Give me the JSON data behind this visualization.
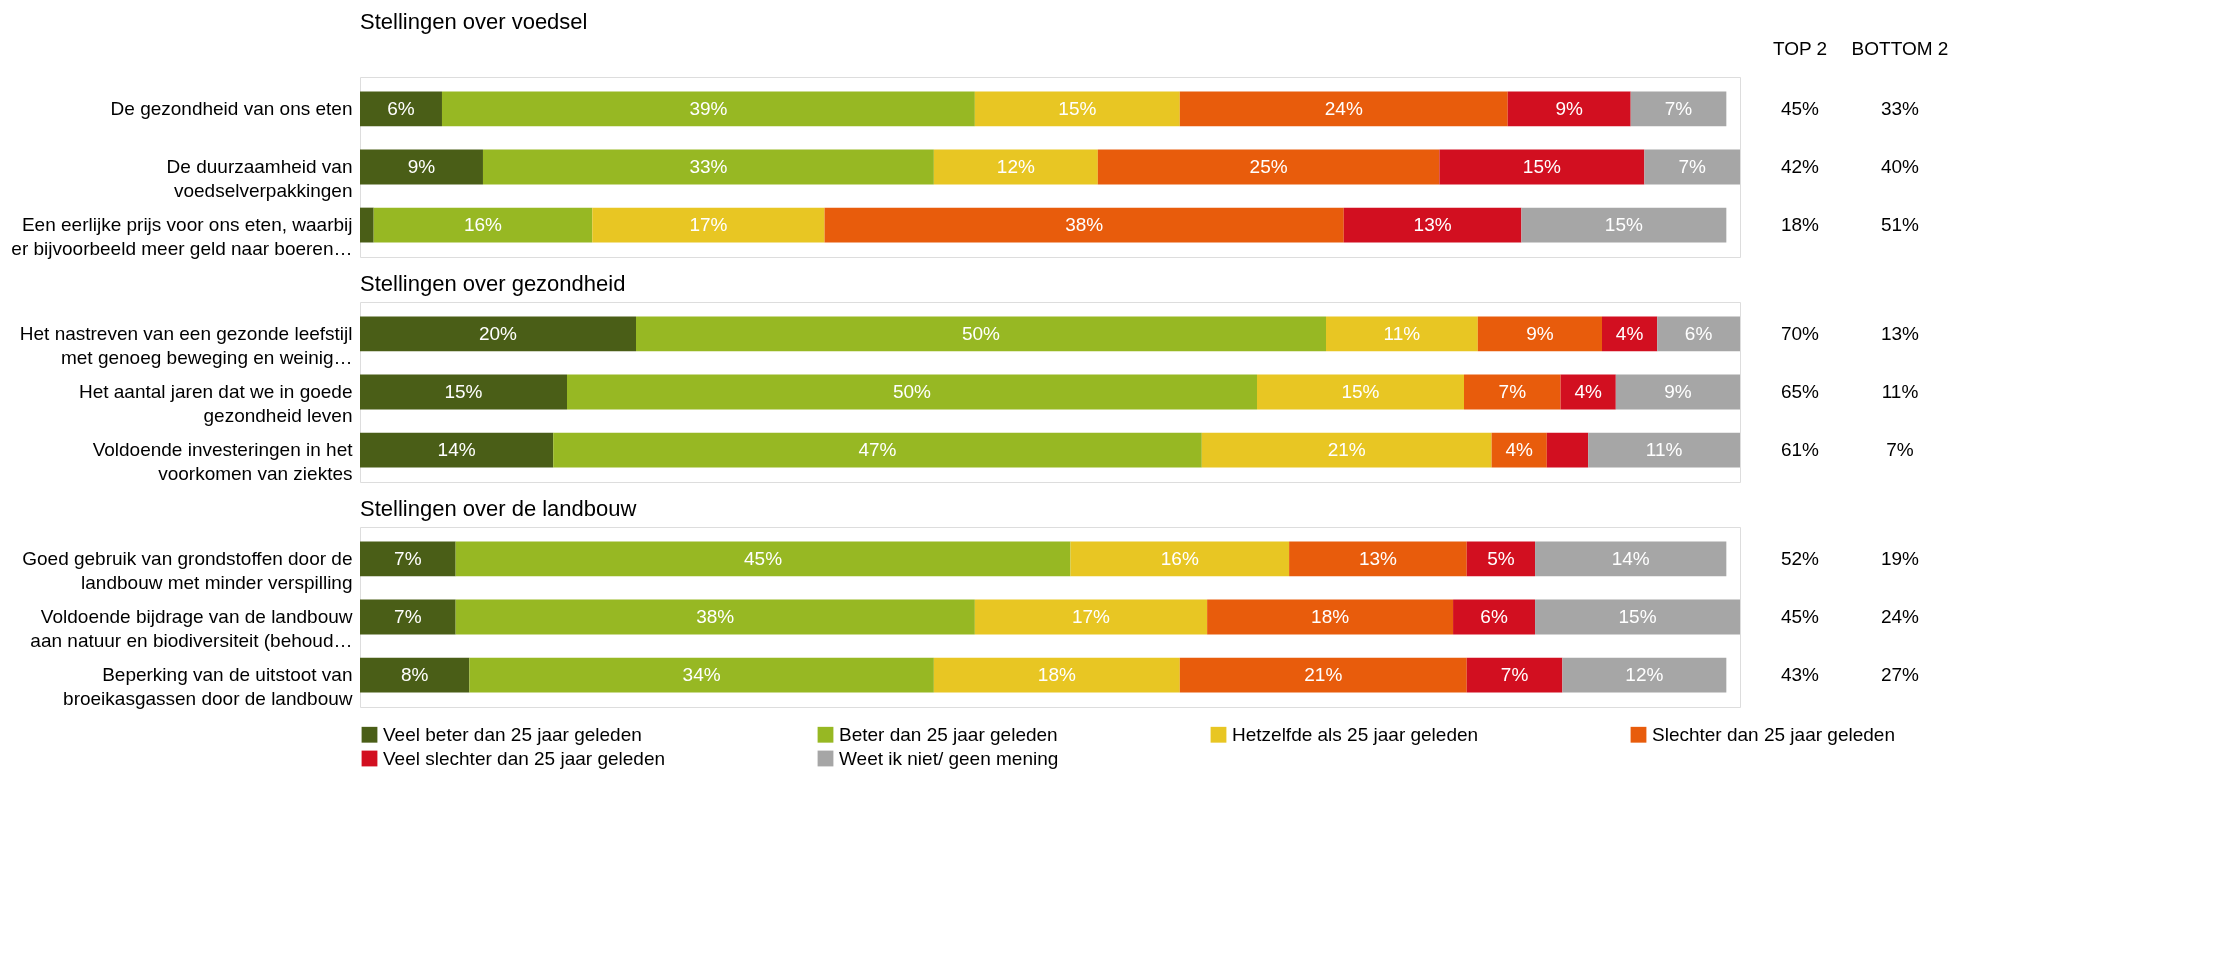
{
  "chart_data": [
    {
      "type": "bar",
      "orientation": "horizontal",
      "stacked": true,
      "title": "Stellingen over voedsel",
      "categories": [
        "De gezondheid van ons eten",
        "De duurzaamheid van\nvoedselverpakkingen",
        "Een eerlijke prijs voor ons eten, waarbij\ner bijvoorbeeld meer geld naar boeren…"
      ],
      "xlim": [
        0,
        101
      ],
      "tick_labels": "y",
      "grid": false,
      "data_labels": false,
      "series": [
        {
          "color": "#4a5e17",
          "values": [
            6,
            9,
            1
          ],
          "value_labels": [
            "6%",
            "9%",
            null
          ]
        },
        {
          "color": "#97b823",
          "values": [
            39,
            33,
            16
          ],
          "value_labels": [
            "39%",
            "33%",
            "16%"
          ]
        },
        {
          "color": "#e8c623",
          "values": [
            15,
            12,
            17
          ],
          "value_labels": [
            "15%",
            "12%",
            "17%"
          ]
        },
        {
          "color": "#e85c0c",
          "values": [
            24,
            25,
            38
          ],
          "value_labels": [
            "24%",
            "25%",
            "38%"
          ]
        },
        {
          "color": "#d20f20",
          "values": [
            9,
            15,
            13
          ],
          "value_labels": [
            "9%",
            "15%",
            "13%"
          ]
        },
        {
          "color": "#a6a6a6",
          "values": [
            7,
            7,
            15
          ],
          "value_labels": [
            "7%",
            "7%",
            "15%"
          ]
        }
      ],
      "annotations": [
        "TOP 2",
        "BOTTOM 2",
        "45%",
        "33%",
        "42%",
        "40%",
        "18%",
        "51%"
      ]
    },
    {
      "type": "bar",
      "orientation": "horizontal",
      "stacked": true,
      "title": "Stellingen over gezondheid",
      "categories": [
        "Het nastreven van een gezonde leefstijl\nmet genoeg beweging en weinig…",
        "Het aantal jaren dat we in goede\ngezondheid leven",
        "Voldoende investeringen in het\nvoorkomen van ziektes"
      ],
      "xlim": [
        0,
        100
      ],
      "tick_labels": "y",
      "grid": false,
      "data_labels": false,
      "series": [
        {
          "color": "#4a5e17",
          "values": [
            20,
            15,
            14
          ],
          "value_labels": [
            "20%",
            "15%",
            "14%"
          ]
        },
        {
          "color": "#97b823",
          "values": [
            50,
            50,
            47
          ],
          "value_labels": [
            "50%",
            "50%",
            "47%"
          ]
        },
        {
          "color": "#e8c623",
          "values": [
            11,
            15,
            21
          ],
          "value_labels": [
            "11%",
            "15%",
            "21%"
          ]
        },
        {
          "color": "#e85c0c",
          "values": [
            9,
            7,
            4
          ],
          "value_labels": [
            "9%",
            "7%",
            "4%"
          ]
        },
        {
          "color": "#d20f20",
          "values": [
            4,
            4,
            3
          ],
          "value_labels": [
            "4%",
            "4%",
            null
          ]
        },
        {
          "color": "#a6a6a6",
          "values": [
            6,
            9,
            11
          ],
          "value_labels": [
            "6%",
            "9%",
            "11%"
          ]
        }
      ],
      "annotations": [
        "70%",
        "13%",
        "65%",
        "11%",
        "61%",
        "7%"
      ]
    },
    {
      "type": "bar",
      "orientation": "horizontal",
      "stacked": true,
      "title": "Stellingen over de landbouw",
      "categories": [
        "Goed gebruik van grondstoffen door de\nlandbouw met minder verspilling",
        "Voldoende bijdrage van de landbouw\naan natuur en biodiversiteit (behoud…",
        "Beperking van de uitstoot van\nbroeikasgassen door de landbouw"
      ],
      "xlim": [
        0,
        101
      ],
      "tick_labels": "y",
      "grid": false,
      "legend": "bottom",
      "data_labels": false,
      "series": [
        {
          "name": "Veel beter dan 25 jaar geleden",
          "color": "#4a5e17",
          "values": [
            7,
            7,
            8
          ],
          "value_labels": [
            "7%",
            "7%",
            "8%"
          ]
        },
        {
          "name": "Beter dan 25 jaar geleden",
          "color": "#97b823",
          "values": [
            45,
            38,
            34
          ],
          "value_labels": [
            "45%",
            "38%",
            "34%"
          ]
        },
        {
          "name": "Hetzelfde als 25 jaar geleden",
          "color": "#e8c623",
          "values": [
            16,
            17,
            18
          ],
          "value_labels": [
            "16%",
            "17%",
            "18%"
          ]
        },
        {
          "name": "Slechter dan 25 jaar geleden",
          "color": "#e85c0c",
          "values": [
            13,
            18,
            21
          ],
          "value_labels": [
            "13%",
            "18%",
            "21%"
          ]
        },
        {
          "name": "Veel slechter dan 25 jaar geleden",
          "color": "#d20f20",
          "values": [
            5,
            6,
            7
          ],
          "value_labels": [
            "5%",
            "6%",
            "7%"
          ]
        },
        {
          "name": "Weet ik niet/ geen mening",
          "color": "#a6a6a6",
          "values": [
            14,
            15,
            12
          ],
          "value_labels": [
            "14%",
            "15%",
            "12%"
          ]
        }
      ],
      "annotations": [
        "52%",
        "19%",
        "45%",
        "24%",
        "43%",
        "27%"
      ]
    }
  ]
}
